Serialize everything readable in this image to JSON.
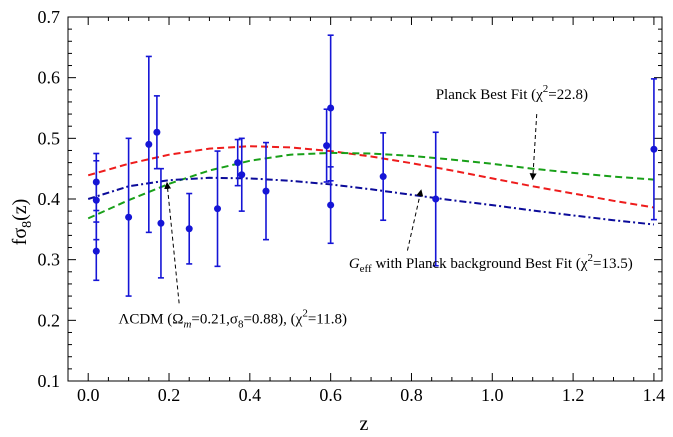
{
  "chart_data": {
    "type": "scatter",
    "title": "",
    "xlabel": "z",
    "ylabel_main": "fσ",
    "ylabel_sub": "8",
    "ylabel_tail": "(z)",
    "xlim": [
      -0.05,
      1.42
    ],
    "ylim": [
      0.1,
      0.7
    ],
    "xticks": [
      0.0,
      0.2,
      0.4,
      0.6,
      0.8,
      1.0,
      1.2,
      1.4
    ],
    "xtick_labels": [
      "0.0",
      "0.2",
      "0.4",
      "0.6",
      "0.8",
      "1.0",
      "1.2",
      "1.4"
    ],
    "yticks": [
      0.1,
      0.2,
      0.3,
      0.4,
      0.5,
      0.6,
      0.7
    ],
    "ytick_labels": [
      "0.1",
      "0.2",
      "0.3",
      "0.4",
      "0.5",
      "0.6",
      "0.7"
    ],
    "grid": false,
    "data_points": {
      "color": "#1515d6",
      "points": [
        {
          "x": 0.02,
          "y": 0.428,
          "err": 0.047
        },
        {
          "x": 0.02,
          "y": 0.398,
          "err": 0.065
        },
        {
          "x": 0.02,
          "y": 0.314,
          "err": 0.048
        },
        {
          "x": 0.1,
          "y": 0.37,
          "err": 0.13
        },
        {
          "x": 0.15,
          "y": 0.49,
          "err": 0.145
        },
        {
          "x": 0.17,
          "y": 0.51,
          "err": 0.06
        },
        {
          "x": 0.18,
          "y": 0.36,
          "err": 0.09
        },
        {
          "x": 0.25,
          "y": 0.351,
          "err": 0.058
        },
        {
          "x": 0.32,
          "y": 0.384,
          "err": 0.095
        },
        {
          "x": 0.37,
          "y": 0.46,
          "err": 0.038
        },
        {
          "x": 0.38,
          "y": 0.44,
          "err": 0.06
        },
        {
          "x": 0.44,
          "y": 0.413,
          "err": 0.08
        },
        {
          "x": 0.59,
          "y": 0.488,
          "err": 0.06
        },
        {
          "x": 0.6,
          "y": 0.39,
          "err": 0.063
        },
        {
          "x": 0.6,
          "y": 0.55,
          "err": 0.12
        },
        {
          "x": 0.73,
          "y": 0.437,
          "err": 0.072
        },
        {
          "x": 0.86,
          "y": 0.4,
          "err": 0.11
        },
        {
          "x": 1.4,
          "y": 0.482,
          "err": 0.116
        }
      ]
    },
    "series": [
      {
        "name": "Planck Best Fit",
        "color": "#ee1c1c",
        "dash": "dashed",
        "x": [
          0.0,
          0.1,
          0.2,
          0.3,
          0.4,
          0.5,
          0.6,
          0.7,
          0.8,
          0.9,
          1.0,
          1.1,
          1.2,
          1.3,
          1.4
        ],
        "y": [
          0.439,
          0.458,
          0.473,
          0.483,
          0.487,
          0.485,
          0.479,
          0.47,
          0.459,
          0.447,
          0.434,
          0.421,
          0.409,
          0.397,
          0.386
        ]
      },
      {
        "name": "G_eff with Planck background Best Fit",
        "color": "#19a019",
        "dash": "dashed",
        "x": [
          0.0,
          0.1,
          0.2,
          0.3,
          0.4,
          0.5,
          0.6,
          0.7,
          0.8,
          0.9,
          1.0,
          1.1,
          1.2,
          1.3,
          1.4
        ],
        "y": [
          0.368,
          0.398,
          0.425,
          0.447,
          0.463,
          0.473,
          0.476,
          0.475,
          0.471,
          0.465,
          0.458,
          0.45,
          0.443,
          0.437,
          0.432
        ]
      },
      {
        "name": "ΛCDM",
        "color": "#0b0b9a",
        "dash": "dashdot",
        "x": [
          0.0,
          0.1,
          0.2,
          0.3,
          0.4,
          0.5,
          0.6,
          0.7,
          0.8,
          0.9,
          1.0,
          1.1,
          1.2,
          1.3,
          1.4
        ],
        "y": [
          0.4,
          0.421,
          0.431,
          0.435,
          0.434,
          0.43,
          0.424,
          0.416,
          0.407,
          0.398,
          0.39,
          0.381,
          0.373,
          0.365,
          0.358
        ]
      }
    ],
    "annotations": [
      {
        "id": "planck",
        "pre": "Planck Best Fit (χ",
        "sup": "2",
        "post": "=22.8)",
        "text_x": 0.86,
        "text_y": 0.565,
        "arrow_from": [
          1.11,
          0.54
        ],
        "arrow_to": [
          1.1,
          0.432
        ]
      },
      {
        "id": "geff",
        "italic": "G",
        "italic_sub": "eff",
        "pre": " with Planck background Best Fit (χ",
        "sup": "2",
        "post": "=13.5)",
        "text_x": 0.645,
        "text_y": 0.286,
        "arrow_from": [
          0.79,
          0.315
        ],
        "arrow_to": [
          0.824,
          0.415
        ]
      },
      {
        "id": "lcdm",
        "pre": "ΛCDM (Ω",
        "italic_sub": "m",
        "post_sub": "=0.21,σ",
        "sub2": "8",
        "post": "=0.88), (χ",
        "sup": "2",
        "post2": "=11.8)",
        "text_x": 0.075,
        "text_y": 0.195,
        "arrow_from": [
          0.225,
          0.228
        ],
        "arrow_to": [
          0.195,
          0.427
        ]
      }
    ]
  }
}
